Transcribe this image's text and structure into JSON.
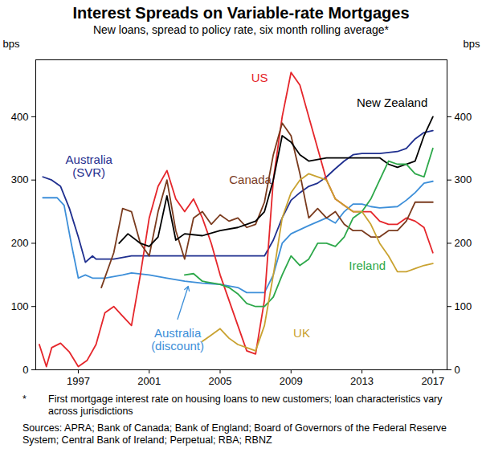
{
  "chart_data": {
    "type": "line",
    "title": "Interest Spreads on Variable-rate Mortgages",
    "subtitle": "New loans, spread to policy rate, six month rolling average*",
    "footnote": "* First mortgage interest rate on housing loans to new customers; loan characteristics vary across jurisdictions",
    "source": "Sources: APRA; Bank of Canada; Bank of England; Board of Governors of the Federal Reserve System; Central Bank of Ireland; Perpetual; RBA; RBNZ",
    "y_label": "bps",
    "xlim": [
      1994.6,
      2017.8
    ],
    "xticks": [
      1997,
      2001,
      2005,
      2009,
      2013,
      2017
    ],
    "ylim": [
      0,
      490
    ],
    "yticks": [
      0,
      100,
      200,
      300,
      400
    ],
    "grid": false,
    "series": [
      {
        "name": "Australia (SVR)",
        "color": "#1f2f8f",
        "x": [
          1995.0,
          1995.5,
          1996.0,
          1996.5,
          1997.0,
          1997.4,
          1997.8,
          1998.0,
          1999.0,
          2000.0,
          2001.0,
          2002.0,
          2003.0,
          2004.0,
          2005.0,
          2006.0,
          2007.0,
          2007.5,
          2008.0,
          2008.5,
          2009.0,
          2009.5,
          2010.0,
          2010.5,
          2011.0,
          2011.5,
          2012.0,
          2012.5,
          2013.0,
          2014.0,
          2015.0,
          2015.5,
          2016.0,
          2016.5,
          2017.0
        ],
        "values": [
          305,
          300,
          290,
          255,
          210,
          170,
          180,
          175,
          175,
          180,
          180,
          180,
          180,
          180,
          180,
          180,
          180,
          180,
          205,
          240,
          268,
          280,
          290,
          295,
          305,
          318,
          330,
          340,
          342,
          342,
          345,
          350,
          365,
          375,
          378
        ]
      },
      {
        "name": "Australia (discount)",
        "color": "#3d8fd9",
        "x": [
          1995.0,
          1995.8,
          1996.2,
          1996.6,
          1997.0,
          1997.4,
          1997.8,
          1998.5,
          1999.5,
          2000.0,
          2001.0,
          2002.0,
          2003.0,
          2004.0,
          2005.0,
          2006.0,
          2006.5,
          2007.5,
          2008.0,
          2008.5,
          2009.0,
          2010.0,
          2011.0,
          2011.5,
          2012.0,
          2012.5,
          2013.0,
          2013.5,
          2014.0,
          2015.0,
          2015.5,
          2016.0,
          2016.5,
          2017.0
        ],
        "values": [
          272,
          272,
          260,
          200,
          145,
          150,
          145,
          145,
          150,
          153,
          150,
          145,
          140,
          137,
          135,
          130,
          122,
          122,
          150,
          200,
          215,
          228,
          240,
          232,
          250,
          262,
          262,
          258,
          256,
          258,
          268,
          280,
          295,
          298
        ]
      },
      {
        "name": "US",
        "color": "#e5262b",
        "x": [
          1994.8,
          1995.2,
          1995.5,
          1996.0,
          1996.5,
          1997.0,
          1997.5,
          1998.0,
          1998.5,
          1999.0,
          1999.5,
          2000.0,
          2000.5,
          2001.0,
          2001.5,
          2002.0,
          2002.5,
          2003.0,
          2003.5,
          2004.0,
          2004.5,
          2005.0,
          2005.5,
          2006.0,
          2006.5,
          2007.0,
          2007.5,
          2008.0,
          2008.5,
          2009.0,
          2009.5,
          2010.0,
          2010.5,
          2011.0,
          2011.5,
          2012.0,
          2012.5,
          2013.0,
          2013.5,
          2014.0,
          2014.5,
          2015.0,
          2015.5,
          2016.0,
          2016.5,
          2017.0
        ],
        "values": [
          40,
          5,
          35,
          42,
          28,
          5,
          15,
          40,
          90,
          100,
          85,
          70,
          150,
          240,
          290,
          315,
          270,
          250,
          270,
          240,
          200,
          150,
          110,
          70,
          30,
          25,
          110,
          300,
          400,
          470,
          450,
          400,
          350,
          300,
          270,
          260,
          250,
          250,
          250,
          235,
          230,
          230,
          240,
          235,
          225,
          185
        ]
      },
      {
        "name": "Canada",
        "color": "#7a3b1e",
        "x": [
          1998.3,
          1999.0,
          1999.5,
          2000.0,
          2000.5,
          2001.0,
          2001.5,
          2002.0,
          2002.5,
          2003.0,
          2003.5,
          2004.0,
          2004.5,
          2005.0,
          2005.5,
          2006.0,
          2006.5,
          2007.0,
          2007.5,
          2008.0,
          2008.5,
          2009.0,
          2009.5,
          2010.0,
          2010.5,
          2011.0,
          2011.5,
          2012.0,
          2012.5,
          2013.0,
          2013.5,
          2014.0,
          2014.5,
          2015.0,
          2015.5,
          2016.0,
          2016.5,
          2017.0
        ],
        "values": [
          130,
          185,
          255,
          250,
          200,
          180,
          250,
          300,
          220,
          175,
          240,
          250,
          230,
          245,
          235,
          240,
          225,
          230,
          265,
          340,
          390,
          370,
          310,
          240,
          255,
          240,
          250,
          230,
          220,
          220,
          210,
          210,
          220,
          220,
          235,
          265,
          265,
          265
        ]
      },
      {
        "name": "New Zealand",
        "color": "#000000",
        "x": [
          1999.3,
          1999.8,
          2000.5,
          2001.0,
          2001.5,
          2002.0,
          2002.5,
          2003.0,
          2004.0,
          2005.0,
          2006.0,
          2006.5,
          2007.0,
          2007.5,
          2008.0,
          2008.5,
          2009.0,
          2009.5,
          2010.0,
          2011.0,
          2012.0,
          2013.0,
          2014.0,
          2014.5,
          2015.0,
          2015.5,
          2016.0,
          2016.5,
          2017.0
        ],
        "values": [
          200,
          215,
          200,
          195,
          210,
          275,
          205,
          215,
          212,
          220,
          225,
          230,
          235,
          250,
          300,
          370,
          360,
          340,
          330,
          335,
          335,
          335,
          335,
          325,
          320,
          325,
          330,
          370,
          400
        ]
      },
      {
        "name": "Ireland",
        "color": "#2da84a",
        "x": [
          2003.0,
          2003.5,
          2004.0,
          2005.0,
          2005.5,
          2006.0,
          2006.5,
          2007.0,
          2007.5,
          2008.0,
          2008.5,
          2009.0,
          2009.5,
          2010.0,
          2010.5,
          2011.0,
          2011.5,
          2012.0,
          2012.5,
          2013.0,
          2013.5,
          2014.0,
          2014.5,
          2015.0,
          2015.5,
          2016.0,
          2016.5,
          2017.0
        ],
        "values": [
          150,
          152,
          140,
          135,
          130,
          120,
          105,
          100,
          100,
          115,
          150,
          180,
          165,
          175,
          200,
          200,
          195,
          210,
          240,
          250,
          270,
          300,
          330,
          325,
          325,
          310,
          305,
          350
        ]
      },
      {
        "name": "UK",
        "color": "#c9a230",
        "x": [
          2004.0,
          2004.5,
          2005.0,
          2005.5,
          2006.0,
          2006.5,
          2007.0,
          2007.5,
          2008.0,
          2008.5,
          2009.0,
          2009.5,
          2010.0,
          2011.0,
          2011.5,
          2012.0,
          2012.5,
          2013.0,
          2013.5,
          2014.0,
          2014.5,
          2015.0,
          2015.5,
          2016.0,
          2016.5,
          2017.0
        ],
        "values": [
          45,
          55,
          65,
          50,
          40,
          35,
          30,
          70,
          150,
          240,
          280,
          300,
          310,
          300,
          270,
          260,
          250,
          250,
          230,
          200,
          180,
          155,
          155,
          160,
          165,
          168
        ]
      }
    ]
  }
}
